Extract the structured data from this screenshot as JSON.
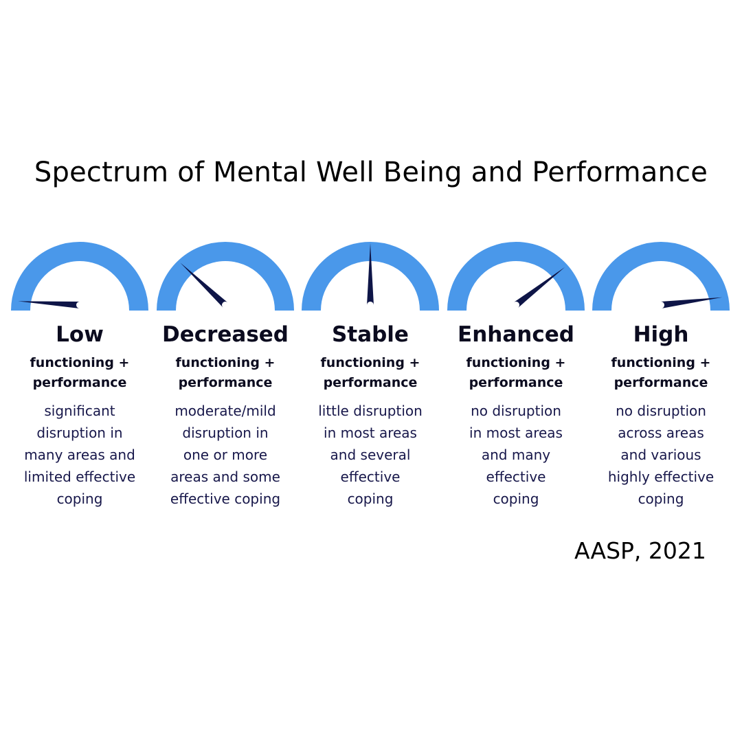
{
  "title": "Spectrum of Mental Well Being and Performance",
  "citation": "AASP, 2021",
  "colors": {
    "arc": "#4a98ea",
    "needle": "#0e1547",
    "text": "#0b0b1f",
    "desc_text": "#17174a"
  },
  "gauges": [
    {
      "level": "Low",
      "sub_line_1": "functioning +",
      "sub_line_2": "performance",
      "desc_lines": [
        "significant",
        "disruption in",
        "many areas and",
        "limited effective",
        "coping"
      ],
      "needle_fraction": 0.02
    },
    {
      "level": "Decreased",
      "sub_line_1": "functioning +",
      "sub_line_2": "performance",
      "desc_lines": [
        "moderate/mild",
        "disruption in",
        "one or more",
        "areas and some",
        "effective coping"
      ],
      "needle_fraction": 0.24
    },
    {
      "level": "Stable",
      "sub_line_1": "functioning +",
      "sub_line_2": "performance",
      "desc_lines": [
        "little disruption",
        "in most areas",
        "and several",
        "effective",
        "coping"
      ],
      "needle_fraction": 0.5
    },
    {
      "level": "Enhanced",
      "sub_line_1": "functioning +",
      "sub_line_2": "performance",
      "desc_lines": [
        "no disruption",
        "in most areas",
        "and many",
        "effective",
        "coping"
      ],
      "needle_fraction": 0.79
    },
    {
      "level": "High",
      "sub_line_1": "functioning +",
      "sub_line_2": "performance",
      "desc_lines": [
        "no disruption",
        "across areas",
        "and various",
        "highly effective",
        "coping"
      ],
      "needle_fraction": 0.96
    }
  ]
}
